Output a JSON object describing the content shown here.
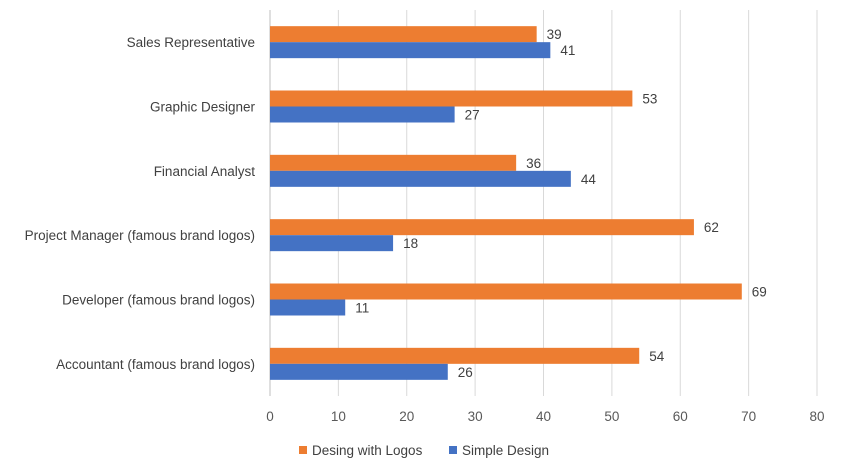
{
  "chart_data": {
    "type": "bar",
    "orientation": "horizontal",
    "categories": [
      "Sales Representative",
      "Graphic Designer",
      "Financial Analyst",
      "Project Manager  (famous brand logos)",
      "Developer (famous brand logos)",
      "Accountant (famous brand logos)"
    ],
    "series": [
      {
        "name": "Desing with Logos",
        "color": "#ed7d31",
        "values": [
          39,
          53,
          36,
          62,
          69,
          54
        ]
      },
      {
        "name": "Simple Design",
        "color": "#4472c4",
        "values": [
          41,
          27,
          44,
          18,
          11,
          26
        ]
      }
    ],
    "xlim": [
      0,
      80
    ],
    "xticks": [
      "0",
      "10",
      "20",
      "30",
      "40",
      "50",
      "60",
      "70",
      "80"
    ],
    "grid": true,
    "data_labels": true,
    "legend_position": "bottom",
    "title": "",
    "xlabel": "",
    "ylabel": ""
  }
}
